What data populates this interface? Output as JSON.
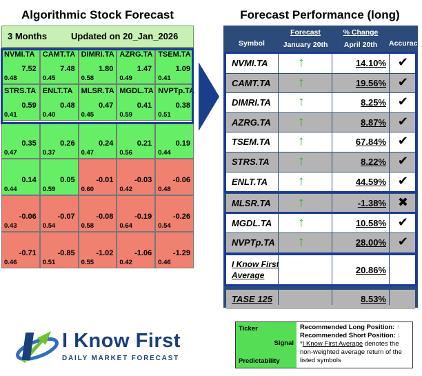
{
  "left_title": "Algorithmic Stock Forecast",
  "right_title": "Forecast Performance (long)",
  "grid_header": {
    "period": "3 Months",
    "updated": "Updated on 20_Jan_2026"
  },
  "grid_colors": {
    "positive": "#66ee66",
    "negative": "#f08070",
    "highlight": "#1a3a9a"
  },
  "grid": [
    {
      "symbol": "NVMI.TA",
      "signal": "7.52",
      "predictability": "0.48",
      "sign": "pos"
    },
    {
      "symbol": "CAMT.TA",
      "signal": "7.48",
      "predictability": "0.45",
      "sign": "pos"
    },
    {
      "symbol": "DIMRI.TA",
      "signal": "1.80",
      "predictability": "0.58",
      "sign": "pos"
    },
    {
      "symbol": "AZRG.TA",
      "signal": "1.47",
      "predictability": "0.49",
      "sign": "pos"
    },
    {
      "symbol": "TSEM.TA",
      "signal": "1.09",
      "predictability": "0.41",
      "sign": "pos"
    },
    {
      "symbol": "STRS.TA",
      "signal": "0.59",
      "predictability": "0.41",
      "sign": "pos"
    },
    {
      "symbol": "ENLT.TA",
      "signal": "0.48",
      "predictability": "0.40",
      "sign": "pos"
    },
    {
      "symbol": "MLSR.TA",
      "signal": "0.47",
      "predictability": "0.45",
      "sign": "pos"
    },
    {
      "symbol": "MGDL.TA",
      "signal": "0.41",
      "predictability": "0.59",
      "sign": "pos"
    },
    {
      "symbol": "NVPTp.TA",
      "signal": "0.38",
      "predictability": "0.51",
      "sign": "pos"
    },
    {
      "symbol": "",
      "signal": "0.35",
      "predictability": "0.47",
      "sign": "pos"
    },
    {
      "symbol": "",
      "signal": "0.26",
      "predictability": "0.37",
      "sign": "pos"
    },
    {
      "symbol": "",
      "signal": "0.24",
      "predictability": "0.47",
      "sign": "pos"
    },
    {
      "symbol": "",
      "signal": "0.21",
      "predictability": "0.56",
      "sign": "pos"
    },
    {
      "symbol": "",
      "signal": "0.19",
      "predictability": "0.44",
      "sign": "pos"
    },
    {
      "symbol": "",
      "signal": "0.14",
      "predictability": "0.44",
      "sign": "pos"
    },
    {
      "symbol": "",
      "signal": "0.05",
      "predictability": "0.59",
      "sign": "pos"
    },
    {
      "symbol": "",
      "signal": "-0.01",
      "predictability": "0.60",
      "sign": "neg"
    },
    {
      "symbol": "",
      "signal": "-0.03",
      "predictability": "0.42",
      "sign": "neg"
    },
    {
      "symbol": "",
      "signal": "-0.06",
      "predictability": "0.48",
      "sign": "neg"
    },
    {
      "symbol": "",
      "signal": "-0.06",
      "predictability": "0.43",
      "sign": "neg"
    },
    {
      "symbol": "",
      "signal": "-0.07",
      "predictability": "0.54",
      "sign": "neg"
    },
    {
      "symbol": "",
      "signal": "-0.08",
      "predictability": "0.58",
      "sign": "neg"
    },
    {
      "symbol": "",
      "signal": "-0.19",
      "predictability": "0.64",
      "sign": "neg"
    },
    {
      "symbol": "",
      "signal": "-0.26",
      "predictability": "0.54",
      "sign": "neg"
    },
    {
      "symbol": "",
      "signal": "-0.71",
      "predictability": "0.46",
      "sign": "neg"
    },
    {
      "symbol": "",
      "signal": "-0.85",
      "predictability": "0.51",
      "sign": "neg"
    },
    {
      "symbol": "",
      "signal": "-1.02",
      "predictability": "0.55",
      "sign": "neg"
    },
    {
      "symbol": "",
      "signal": "-1.06",
      "predictability": "0.42",
      "sign": "neg"
    },
    {
      "symbol": "",
      "signal": "-1.29",
      "predictability": "0.46",
      "sign": "neg"
    }
  ],
  "perf_header": {
    "symbol": "Symbol",
    "forecast_top": "Forecast",
    "forecast_bottom": "January 20th",
    "change_top": "% Change",
    "change_bottom": "April 20th",
    "accuracy": "Accuracy"
  },
  "perf_colors": {
    "up_arrow": "#22b022",
    "table_bg": "#2c4a7a"
  },
  "perf_rows": [
    {
      "symbol": "NVMI.TA",
      "arrow": "↑",
      "change": "14.10%",
      "accuracy": "✔"
    },
    {
      "symbol": "CAMT.TA",
      "arrow": "↑",
      "change": "19.56%",
      "accuracy": "✔"
    },
    {
      "symbol": "DIMRI.TA",
      "arrow": "↑",
      "change": "8.25%",
      "accuracy": "✔"
    },
    {
      "symbol": "AZRG.TA",
      "arrow": "↑",
      "change": "8.87%",
      "accuracy": "✔"
    },
    {
      "symbol": "TSEM.TA",
      "arrow": "↑",
      "change": "67.84%",
      "accuracy": "✔"
    },
    {
      "symbol": "STRS.TA",
      "arrow": "↑",
      "change": "8.22%",
      "accuracy": "✔"
    },
    {
      "symbol": "ENLT.TA",
      "arrow": "↑",
      "change": "44.59%",
      "accuracy": "✔"
    },
    {
      "symbol": "MLSR.TA",
      "arrow": "↑",
      "change": "-1.38%",
      "accuracy": "✖"
    },
    {
      "symbol": "MGDL.TA",
      "arrow": "↑",
      "change": "10.58%",
      "accuracy": "✔"
    },
    {
      "symbol": "NVPTp.TA",
      "arrow": "↑",
      "change": "28.00%",
      "accuracy": "✔"
    }
  ],
  "average": {
    "label": "I Know First Average",
    "value": "20.86%"
  },
  "benchmark": {
    "label": "TASE 125",
    "value": "8.53%"
  },
  "logo": {
    "name": "I Know First",
    "tagline": "DAILY MARKET FORECAST"
  },
  "legend": {
    "ticker": "Ticker",
    "signal": "Signal",
    "predictability": "Predictability",
    "long_label": "Recommended Long Position:",
    "long_arrow": "↑",
    "short_label": "Recommended Short Position:",
    "short_arrow": "↓",
    "avg_star": "*",
    "avg_name": "I Know First Average",
    "avg_desc": " denotes the non-weighted average return of the listed symbols"
  }
}
